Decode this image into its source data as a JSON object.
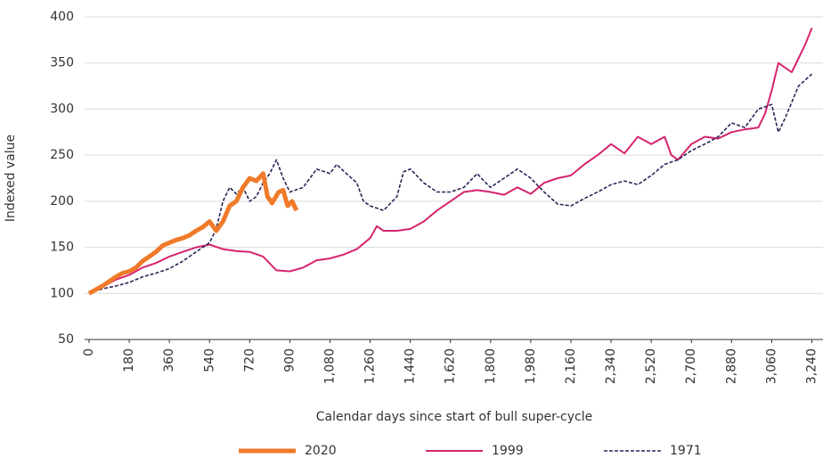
{
  "chart_data": {
    "type": "line",
    "x_label": "Calendar days since start of bull super-cycle",
    "y_label": "Indexed value",
    "xlim": [
      -20,
      3290
    ],
    "ylim": [
      50,
      400
    ],
    "xticks": [
      0,
      180,
      360,
      540,
      720,
      900,
      {
        "value": 1080,
        "label": "1,080"
      },
      {
        "value": 1260,
        "label": "1,260"
      },
      {
        "value": 1440,
        "label": "1,440"
      },
      {
        "value": 1620,
        "label": "1,620"
      },
      {
        "value": 1800,
        "label": "1,800"
      },
      {
        "value": 1980,
        "label": "1,980"
      },
      {
        "value": 2160,
        "label": "2,160"
      },
      {
        "value": 2340,
        "label": "2,340"
      },
      {
        "value": 2520,
        "label": "2,520"
      },
      {
        "value": 2700,
        "label": "2,700"
      },
      {
        "value": 2880,
        "label": "2,880"
      },
      {
        "value": 3060,
        "label": "3,060"
      },
      {
        "value": 3240,
        "label": "3,240"
      }
    ],
    "yticks": [
      50,
      100,
      150,
      200,
      250,
      300,
      350,
      400
    ],
    "grid": true,
    "legend": "bottom",
    "series": [
      {
        "name": "2020",
        "color": "#f07a2a",
        "line_style": "thick",
        "x": [
          0,
          30,
          60,
          90,
          120,
          150,
          180,
          210,
          240,
          270,
          300,
          330,
          360,
          390,
          420,
          450,
          480,
          510,
          540,
          570,
          600,
          630,
          660,
          690,
          720,
          750,
          780,
          800,
          820,
          850,
          870,
          890,
          910,
          930
        ],
        "values": [
          100,
          104,
          108,
          113,
          118,
          122,
          124,
          128,
          135,
          140,
          145,
          152,
          155,
          158,
          160,
          163,
          168,
          172,
          178,
          168,
          178,
          195,
          200,
          215,
          225,
          222,
          230,
          205,
          198,
          210,
          212,
          195,
          200,
          190
        ]
      },
      {
        "name": "1999",
        "color": "#d6246e",
        "line_style": "solid",
        "x": [
          0,
          60,
          120,
          180,
          240,
          300,
          360,
          420,
          480,
          540,
          600,
          660,
          720,
          780,
          840,
          900,
          960,
          1020,
          1080,
          1140,
          1200,
          1260,
          1290,
          1320,
          1380,
          1440,
          1500,
          1560,
          1620,
          1680,
          1740,
          1800,
          1860,
          1920,
          1980,
          2040,
          2100,
          2160,
          2220,
          2280,
          2340,
          2400,
          2460,
          2520,
          2580,
          2610,
          2640,
          2700,
          2760,
          2820,
          2880,
          2940,
          3000,
          3030,
          3060,
          3090,
          3120,
          3150,
          3180,
          3210,
          3240
        ],
        "values": [
          100,
          107,
          115,
          120,
          128,
          133,
          140,
          145,
          150,
          153,
          148,
          146,
          145,
          140,
          125,
          124,
          128,
          136,
          138,
          142,
          148,
          160,
          173,
          168,
          168,
          170,
          178,
          190,
          200,
          210,
          212,
          210,
          207,
          215,
          208,
          220,
          225,
          228,
          240,
          250,
          262,
          252,
          270,
          262,
          270,
          250,
          245,
          262,
          270,
          268,
          275,
          278,
          280,
          295,
          320,
          350,
          345,
          340,
          355,
          370,
          388
        ]
      },
      {
        "name": "1971",
        "color": "#2d2458",
        "line_style": "dashed",
        "x": [
          0,
          60,
          120,
          180,
          240,
          300,
          360,
          420,
          480,
          540,
          570,
          600,
          630,
          660,
          690,
          720,
          750,
          780,
          810,
          840,
          870,
          900,
          960,
          1020,
          1080,
          1110,
          1140,
          1200,
          1230,
          1260,
          1320,
          1380,
          1410,
          1440,
          1500,
          1560,
          1620,
          1680,
          1740,
          1770,
          1800,
          1860,
          1920,
          1980,
          2040,
          2100,
          2160,
          2220,
          2280,
          2340,
          2400,
          2460,
          2520,
          2580,
          2640,
          2700,
          2760,
          2820,
          2880,
          2940,
          3000,
          3060,
          3090,
          3120,
          3180,
          3240
        ],
        "values": [
          100,
          105,
          108,
          112,
          118,
          122,
          127,
          135,
          145,
          155,
          170,
          200,
          215,
          208,
          215,
          200,
          205,
          220,
          230,
          245,
          225,
          210,
          215,
          235,
          230,
          240,
          233,
          220,
          200,
          195,
          190,
          205,
          232,
          235,
          220,
          210,
          210,
          215,
          230,
          222,
          215,
          225,
          235,
          225,
          210,
          197,
          195,
          203,
          210,
          218,
          222,
          218,
          228,
          240,
          245,
          255,
          262,
          270,
          285,
          280,
          300,
          305,
          275,
          290,
          325,
          338
        ]
      }
    ]
  }
}
